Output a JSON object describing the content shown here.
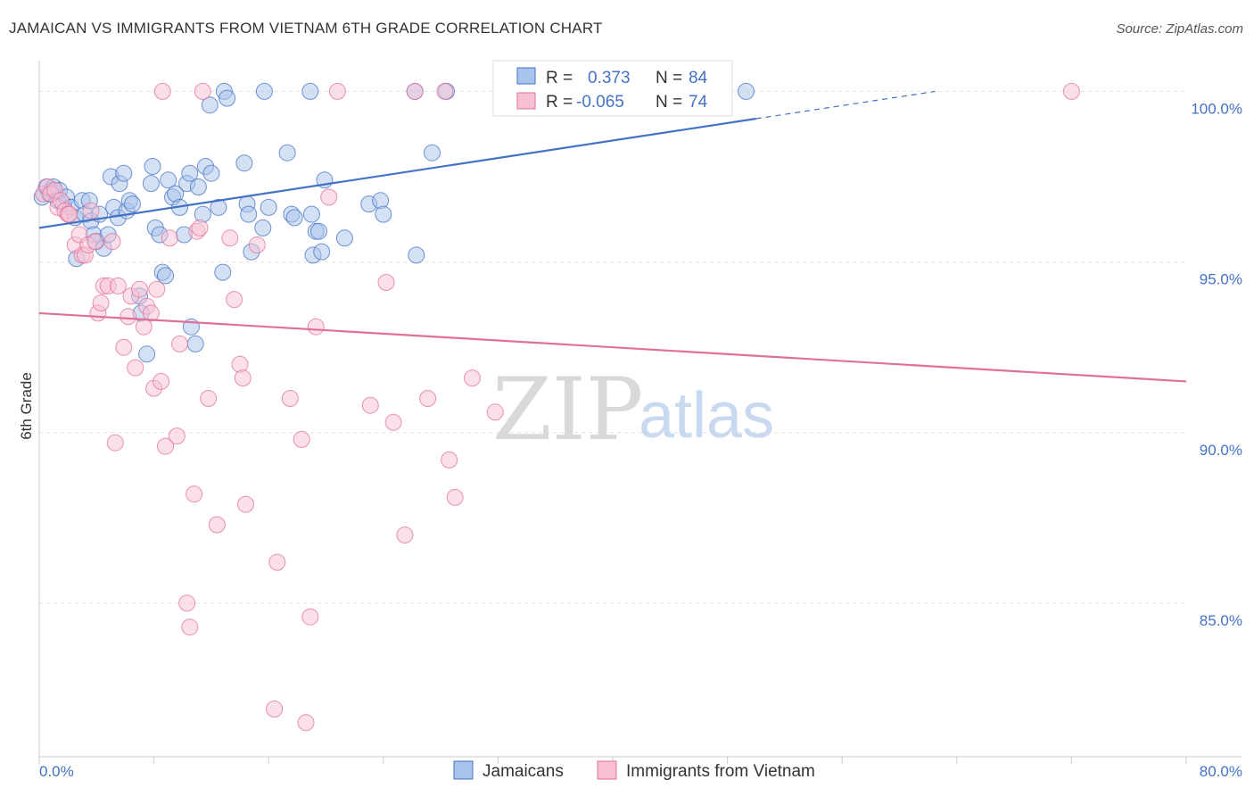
{
  "title": "JAMAICAN VS IMMIGRANTS FROM VIETNAM 6TH GRADE CORRELATION CHART",
  "source": "Source: ZipAtlas.com",
  "watermark": {
    "zip": "ZIP",
    "atlas": "atlas"
  },
  "chart_data": {
    "type": "scatter",
    "ylabel": "6th Grade",
    "xlim": [
      0,
      80
    ],
    "ylim": [
      80.5,
      100.9
    ],
    "x_tick_labels": [
      {
        "value": 0,
        "label": "0.0%"
      },
      {
        "value": 80,
        "label": "80.0%"
      }
    ],
    "x_minor_ticks": [
      0,
      8,
      16,
      24,
      32,
      40,
      48,
      56,
      64,
      72,
      80
    ],
    "y_ticks": [
      {
        "value": 100,
        "label": "100.0%"
      },
      {
        "value": 95,
        "label": "95.0%"
      },
      {
        "value": 90,
        "label": "90.0%"
      },
      {
        "value": 85,
        "label": "85.0%"
      }
    ],
    "grid": true,
    "legend_position": "top-center",
    "legend": [
      {
        "r_label": "R =",
        "r_value": "0.373",
        "n_label": "N =",
        "n_value": "84"
      },
      {
        "r_label": "R =",
        "r_value": "-0.065",
        "n_label": "N =",
        "n_value": "74"
      }
    ],
    "series": [
      {
        "name": "Jamaicans",
        "color": "#4472c4",
        "fill": "#a9c4ec",
        "trend": {
          "x0": 0,
          "y0": 96.0,
          "x1": 50,
          "y1": 99.2,
          "dash_to_x": 62.5,
          "dash_to_y": 100.0
        },
        "points": [
          [
            0.2,
            96.9
          ],
          [
            0.5,
            97.2
          ],
          [
            0.7,
            97.0
          ],
          [
            0.9,
            97.1
          ],
          [
            1.0,
            97.2
          ],
          [
            1.3,
            96.8
          ],
          [
            1.4,
            97.1
          ],
          [
            1.7,
            96.7
          ],
          [
            1.9,
            96.9
          ],
          [
            2.2,
            96.6
          ],
          [
            2.5,
            96.3
          ],
          [
            2.6,
            95.1
          ],
          [
            3.0,
            96.8
          ],
          [
            3.2,
            96.4
          ],
          [
            3.5,
            96.8
          ],
          [
            3.6,
            96.2
          ],
          [
            3.8,
            95.8
          ],
          [
            4.0,
            95.6
          ],
          [
            4.2,
            96.4
          ],
          [
            4.5,
            95.4
          ],
          [
            4.8,
            95.8
          ],
          [
            5.0,
            97.5
          ],
          [
            5.2,
            96.6
          ],
          [
            5.5,
            96.3
          ],
          [
            5.6,
            97.3
          ],
          [
            5.9,
            97.6
          ],
          [
            6.1,
            96.5
          ],
          [
            6.3,
            96.8
          ],
          [
            6.5,
            96.7
          ],
          [
            7.0,
            94.0
          ],
          [
            7.1,
            93.5
          ],
          [
            7.5,
            92.3
          ],
          [
            7.8,
            97.3
          ],
          [
            7.9,
            97.8
          ],
          [
            8.1,
            96.0
          ],
          [
            8.4,
            95.8
          ],
          [
            8.6,
            94.7
          ],
          [
            8.8,
            94.6
          ],
          [
            9.0,
            97.4
          ],
          [
            9.3,
            96.9
          ],
          [
            9.5,
            97.0
          ],
          [
            9.8,
            96.6
          ],
          [
            10.1,
            95.8
          ],
          [
            10.3,
            97.3
          ],
          [
            10.5,
            97.6
          ],
          [
            10.6,
            93.1
          ],
          [
            10.9,
            92.6
          ],
          [
            11.1,
            97.2
          ],
          [
            11.4,
            96.4
          ],
          [
            11.6,
            97.8
          ],
          [
            11.9,
            99.6
          ],
          [
            12.0,
            97.6
          ],
          [
            12.5,
            96.6
          ],
          [
            12.8,
            94.7
          ],
          [
            12.9,
            100.0
          ],
          [
            13.1,
            99.8
          ],
          [
            14.3,
            97.9
          ],
          [
            14.5,
            96.7
          ],
          [
            14.6,
            96.4
          ],
          [
            14.8,
            95.3
          ],
          [
            15.6,
            96.0
          ],
          [
            15.7,
            100.0
          ],
          [
            16.0,
            96.6
          ],
          [
            17.3,
            98.2
          ],
          [
            17.6,
            96.4
          ],
          [
            17.8,
            96.3
          ],
          [
            18.9,
            100.0
          ],
          [
            19.0,
            96.4
          ],
          [
            19.1,
            95.2
          ],
          [
            19.3,
            95.9
          ],
          [
            19.5,
            95.9
          ],
          [
            19.7,
            95.3
          ],
          [
            19.9,
            97.4
          ],
          [
            21.3,
            95.7
          ],
          [
            23.0,
            96.7
          ],
          [
            23.8,
            96.8
          ],
          [
            24.0,
            96.4
          ],
          [
            26.2,
            100.0
          ],
          [
            26.3,
            95.2
          ],
          [
            27.4,
            98.2
          ],
          [
            28.4,
            100.0
          ],
          [
            41.0,
            100.0
          ],
          [
            43.2,
            100.0
          ],
          [
            49.3,
            100.0
          ]
        ]
      },
      {
        "name": "Immigrants from Vietnam",
        "color": "#e0709a",
        "fill": "#f7c1d3",
        "trend": {
          "x0": 0,
          "y0": 93.5,
          "x1": 80,
          "y1": 91.5
        },
        "points": [
          [
            0.3,
            97.0
          ],
          [
            0.6,
            97.2
          ],
          [
            0.8,
            97.0
          ],
          [
            1.1,
            97.1
          ],
          [
            1.3,
            96.6
          ],
          [
            1.5,
            96.8
          ],
          [
            1.8,
            96.5
          ],
          [
            2.0,
            96.4
          ],
          [
            2.5,
            95.5
          ],
          [
            2.8,
            95.8
          ],
          [
            3.0,
            95.2
          ],
          [
            3.2,
            95.2
          ],
          [
            3.4,
            95.5
          ],
          [
            3.6,
            96.5
          ],
          [
            3.9,
            95.6
          ],
          [
            4.1,
            93.5
          ],
          [
            4.3,
            93.8
          ],
          [
            4.5,
            94.3
          ],
          [
            4.8,
            94.3
          ],
          [
            5.1,
            95.6
          ],
          [
            5.3,
            89.7
          ],
          [
            5.5,
            94.3
          ],
          [
            5.9,
            92.5
          ],
          [
            6.2,
            93.4
          ],
          [
            6.4,
            94.0
          ],
          [
            6.7,
            91.9
          ],
          [
            7.0,
            94.2
          ],
          [
            7.3,
            93.1
          ],
          [
            7.5,
            93.7
          ],
          [
            7.8,
            93.5
          ],
          [
            8.0,
            91.3
          ],
          [
            8.2,
            94.2
          ],
          [
            8.5,
            91.5
          ],
          [
            8.8,
            89.6
          ],
          [
            9.1,
            95.7
          ],
          [
            9.6,
            89.9
          ],
          [
            9.8,
            92.6
          ],
          [
            10.3,
            85.0
          ],
          [
            10.5,
            84.3
          ],
          [
            10.8,
            88.2
          ],
          [
            11.0,
            95.9
          ],
          [
            11.2,
            96.0
          ],
          [
            11.8,
            91.0
          ],
          [
            12.4,
            87.3
          ],
          [
            13.3,
            95.7
          ],
          [
            13.6,
            93.9
          ],
          [
            14.0,
            92.0
          ],
          [
            14.2,
            91.6
          ],
          [
            14.4,
            87.9
          ],
          [
            15.2,
            95.5
          ],
          [
            16.4,
            81.9
          ],
          [
            16.6,
            86.2
          ],
          [
            17.5,
            91.0
          ],
          [
            18.3,
            89.8
          ],
          [
            18.6,
            81.5
          ],
          [
            18.9,
            84.6
          ],
          [
            19.3,
            93.1
          ],
          [
            20.2,
            96.9
          ],
          [
            20.8,
            100.0
          ],
          [
            23.1,
            90.8
          ],
          [
            24.2,
            94.4
          ],
          [
            24.7,
            90.3
          ],
          [
            25.5,
            87.0
          ],
          [
            26.2,
            100.0
          ],
          [
            27.1,
            91.0
          ],
          [
            28.3,
            100.0
          ],
          [
            28.6,
            89.2
          ],
          [
            29.0,
            88.1
          ],
          [
            30.2,
            91.6
          ],
          [
            31.8,
            90.6
          ],
          [
            8.6,
            100.0
          ],
          [
            11.4,
            100.0
          ],
          [
            72.0,
            100.0
          ],
          [
            2.1,
            96.4
          ]
        ]
      }
    ]
  }
}
